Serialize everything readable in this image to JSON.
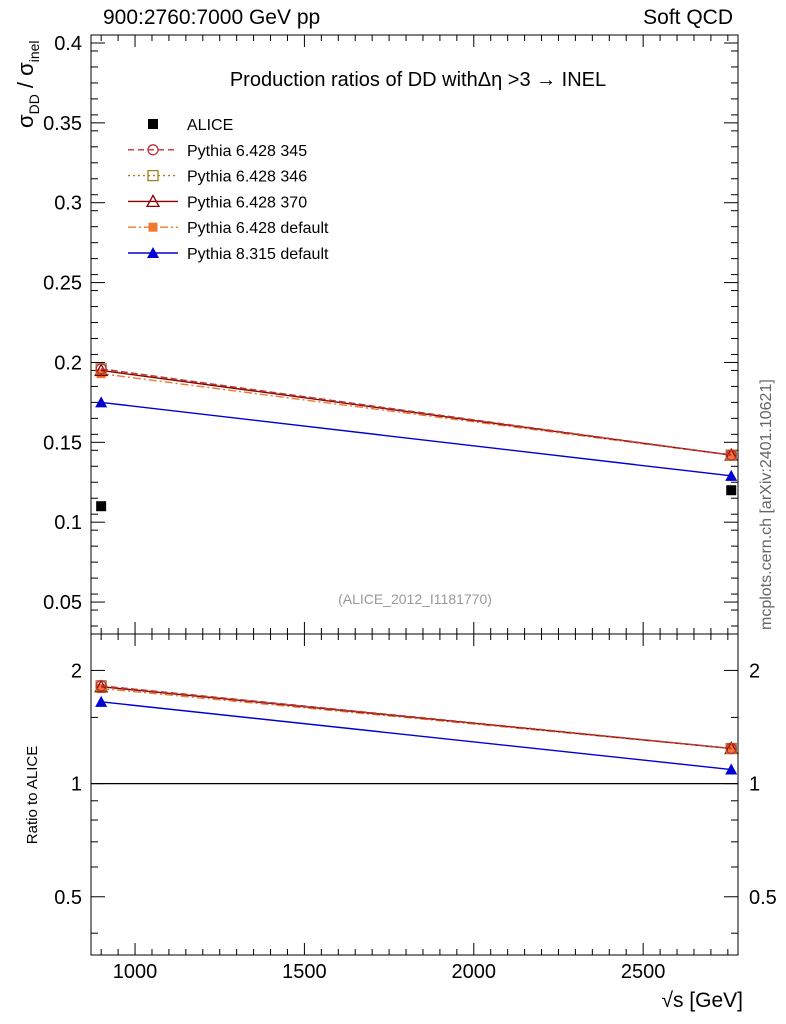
{
  "header": {
    "left": "900:2760:7000 GeV pp",
    "right": "Soft QCD"
  },
  "side_label": "mcplots.cern.ch [arXiv:2401.10621]",
  "chart_data": [
    {
      "type": "line",
      "title": "Production ratios of DD withΔη >3 → INEL",
      "ylabel": "σDD / σinel",
      "ylabel_main": "σ",
      "ylabel_sub1": "DD",
      "ylabel_mid": " / σ",
      "ylabel_sub2": "inel",
      "xlabel": "√s [GeV]",
      "xlim": [
        870,
        2780
      ],
      "ylim": [
        0.03,
        0.405
      ],
      "yticks": [
        0.05,
        0.1,
        0.15,
        0.2,
        0.25,
        0.3,
        0.35,
        0.4
      ],
      "ytick_labels": [
        "0.05",
        "0.1",
        "0.15",
        "0.2",
        "0.25",
        "0.3",
        "0.35",
        "0.4"
      ],
      "annotation": "(ALICE_2012_I1181770)",
      "legend_position": "top-left",
      "x": [
        900,
        2760
      ],
      "series": [
        {
          "name": "ALICE",
          "values": [
            0.11,
            0.12
          ],
          "color": "#000000",
          "style": "data"
        },
        {
          "name": "Pythia 6.428 345",
          "values": [
            0.196,
            0.142
          ],
          "color": "#c03040",
          "style": "dashed",
          "marker": "circle-open"
        },
        {
          "name": "Pythia 6.428 346",
          "values": [
            0.196,
            0.142
          ],
          "color": "#a08020",
          "style": "dotted",
          "marker": "square-open"
        },
        {
          "name": "Pythia 6.428 370",
          "values": [
            0.195,
            0.142
          ],
          "color": "#8b0000",
          "style": "solid",
          "marker": "triangle-open"
        },
        {
          "name": "Pythia 6.428 default",
          "values": [
            0.193,
            0.142
          ],
          "color": "#f07830",
          "style": "dashdot",
          "marker": "square-filled"
        },
        {
          "name": "Pythia 8.315 default",
          "values": [
            0.175,
            0.129
          ],
          "color": "#0000d0",
          "style": "solid",
          "marker": "triangle-filled"
        }
      ]
    },
    {
      "type": "line",
      "title": "",
      "ylabel": "Ratio to ALICE",
      "xlabel": "√s [GeV]",
      "ylim": [
        0.35,
        2.5
      ],
      "yticks": [
        0.5,
        1,
        2
      ],
      "ytick_labels": [
        "0.5",
        "1",
        "2"
      ],
      "xticks": [
        1000,
        1500,
        2000,
        2500
      ],
      "xtick_labels": [
        "1000",
        "1500",
        "2000",
        "2500"
      ],
      "x": [
        900,
        2760
      ],
      "reference": 1,
      "series": [
        {
          "name": "Pythia 6.428 345",
          "values": [
            1.82,
            1.24
          ]
        },
        {
          "name": "Pythia 6.428 346",
          "values": [
            1.82,
            1.24
          ]
        },
        {
          "name": "Pythia 6.428 370",
          "values": [
            1.81,
            1.24
          ]
        },
        {
          "name": "Pythia 6.428 default",
          "values": [
            1.79,
            1.24
          ]
        },
        {
          "name": "Pythia 8.315 default",
          "values": [
            1.65,
            1.09
          ]
        }
      ]
    }
  ]
}
